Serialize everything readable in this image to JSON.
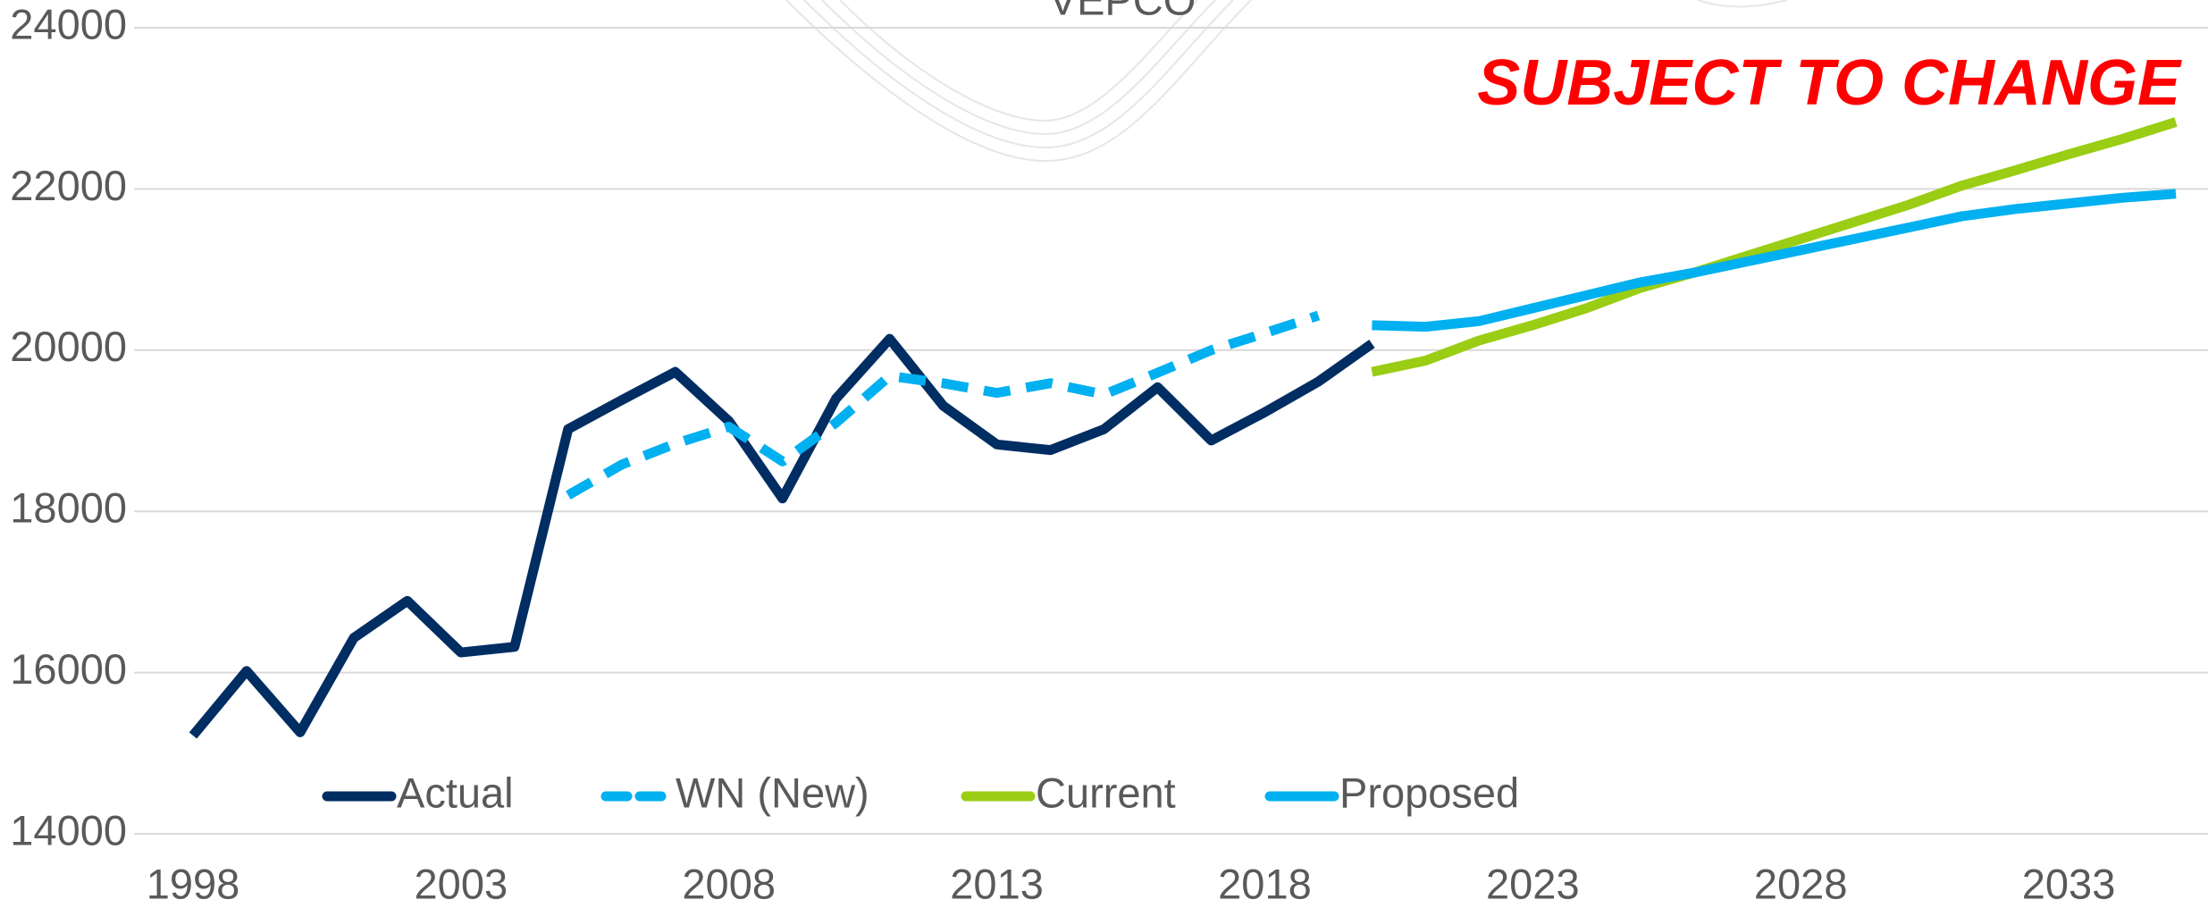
{
  "chart_data": {
    "type": "line",
    "title": "VEPCO",
    "annotation": "SUBJECT TO CHANGE",
    "x": [
      1998,
      1999,
      2000,
      2001,
      2002,
      2003,
      2004,
      2005,
      2006,
      2007,
      2008,
      2009,
      2010,
      2011,
      2012,
      2013,
      2014,
      2015,
      2016,
      2017,
      2018,
      2019,
      2020,
      2021,
      2022,
      2023,
      2024,
      2025,
      2026,
      2027,
      2028,
      2029,
      2030,
      2031,
      2032,
      2033,
      2034,
      2035
    ],
    "series": [
      {
        "name": "Actual",
        "color": "#002d62",
        "dash": false,
        "values": [
          15220,
          16020,
          15260,
          16430,
          16890,
          16250,
          16320,
          19020,
          19380,
          19730,
          19120,
          18160,
          19400,
          20140,
          19310,
          18830,
          18760,
          19020,
          19540,
          18880,
          19230,
          19610,
          20080,
          null,
          null,
          null,
          null,
          null,
          null,
          null,
          null,
          null,
          null,
          null,
          null,
          null,
          null,
          null
        ]
      },
      {
        "name": "WN (New)",
        "color": "#00b0f0",
        "dash": true,
        "values": [
          null,
          null,
          null,
          null,
          null,
          null,
          null,
          18200,
          18580,
          18840,
          19050,
          18620,
          19100,
          19680,
          19590,
          19470,
          19590,
          19450,
          19720,
          20000,
          20210,
          20430,
          null,
          null,
          null,
          null,
          null,
          null,
          null,
          null,
          null,
          null,
          null,
          null,
          null,
          null,
          null,
          null
        ]
      },
      {
        "name": "Current",
        "color": "#9acd13",
        "dash": false,
        "values": [
          null,
          null,
          null,
          null,
          null,
          null,
          null,
          null,
          null,
          null,
          null,
          null,
          null,
          null,
          null,
          null,
          null,
          null,
          null,
          null,
          null,
          null,
          19730,
          19870,
          20120,
          20310,
          20520,
          20770,
          20960,
          21170,
          21380,
          21590,
          21800,
          22040,
          22230,
          22430,
          22620,
          22830
        ]
      },
      {
        "name": "Proposed",
        "color": "#00b0f0",
        "dash": false,
        "values": [
          null,
          null,
          null,
          null,
          null,
          null,
          null,
          null,
          null,
          null,
          null,
          null,
          null,
          null,
          null,
          null,
          null,
          null,
          null,
          null,
          null,
          null,
          20310,
          20290,
          20360,
          20520,
          20680,
          20840,
          20960,
          21100,
          21240,
          21380,
          21520,
          21660,
          21750,
          21820,
          21890,
          21940
        ]
      }
    ],
    "xlim": [
      1996.9,
      2035.6
    ],
    "xticks": [
      1998,
      2003,
      2008,
      2013,
      2018,
      2023,
      2028,
      2033
    ],
    "ylim": [
      14000,
      24000
    ],
    "yticks": [
      14000,
      16000,
      18000,
      20000,
      22000,
      24000
    ],
    "grid": true
  }
}
